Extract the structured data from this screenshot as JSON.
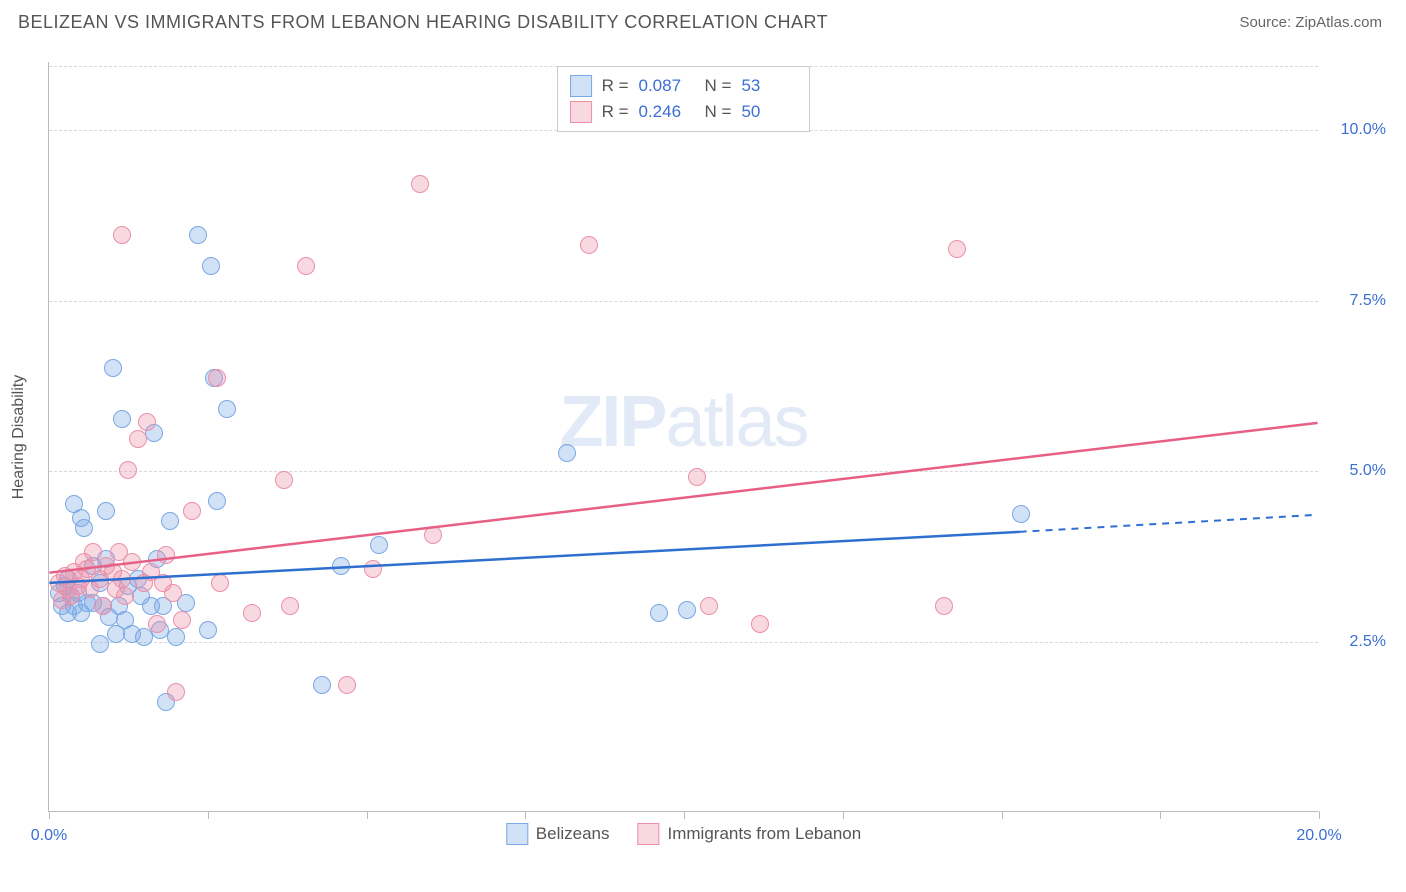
{
  "title": "BELIZEAN VS IMMIGRANTS FROM LEBANON HEARING DISABILITY CORRELATION CHART",
  "source": "Source: ZipAtlas.com",
  "watermark_bold": "ZIP",
  "watermark_light": "atlas",
  "ylabel": "Hearing Disability",
  "chart": {
    "type": "scatter",
    "xlim": [
      0,
      20
    ],
    "ylim": [
      0,
      11
    ],
    "xtick_positions": [
      0,
      2.5,
      5,
      7.5,
      10,
      12.5,
      15,
      17.5,
      20
    ],
    "xtick_labels": {
      "0": "0.0%",
      "20": "20.0%"
    },
    "ytick_positions": [
      2.5,
      5.0,
      7.5,
      10.0
    ],
    "ytick_labels": [
      "2.5%",
      "5.0%",
      "7.5%",
      "10.0%"
    ],
    "grid_color": "#d8d8d8",
    "axis_color": "#bbbbbb",
    "background": "#ffffff",
    "tick_label_color": "#3b6fd4",
    "point_radius": 9,
    "series": [
      {
        "name": "Belizeans",
        "fill": "rgba(122,168,228,0.35)",
        "stroke": "#7aa8e4",
        "line_color": "#2f6fd0",
        "R": "0.087",
        "N": "53",
        "trend": {
          "x1": 0,
          "y1": 3.35,
          "x2": 15.3,
          "y2": 4.1,
          "x2_dash": 20,
          "y2_dash": 4.35
        },
        "points": [
          [
            0.15,
            3.2
          ],
          [
            0.2,
            3.0
          ],
          [
            0.25,
            3.3
          ],
          [
            0.3,
            2.9
          ],
          [
            0.3,
            3.4
          ],
          [
            0.35,
            3.15
          ],
          [
            0.4,
            3.0
          ],
          [
            0.4,
            4.5
          ],
          [
            0.45,
            3.2
          ],
          [
            0.5,
            2.9
          ],
          [
            0.5,
            4.3
          ],
          [
            0.55,
            4.15
          ],
          [
            0.6,
            3.05
          ],
          [
            0.7,
            3.6
          ],
          [
            0.7,
            3.05
          ],
          [
            0.8,
            3.35
          ],
          [
            0.8,
            2.45
          ],
          [
            0.85,
            3.0
          ],
          [
            0.9,
            3.7
          ],
          [
            0.9,
            4.4
          ],
          [
            0.95,
            2.85
          ],
          [
            1.0,
            6.5
          ],
          [
            1.05,
            2.6
          ],
          [
            1.1,
            3.0
          ],
          [
            1.15,
            5.75
          ],
          [
            1.2,
            2.8
          ],
          [
            1.25,
            3.3
          ],
          [
            1.3,
            2.6
          ],
          [
            1.4,
            3.4
          ],
          [
            1.45,
            3.15
          ],
          [
            1.5,
            2.55
          ],
          [
            1.6,
            3.0
          ],
          [
            1.65,
            5.55
          ],
          [
            1.7,
            3.7
          ],
          [
            1.75,
            2.65
          ],
          [
            1.8,
            3.0
          ],
          [
            1.85,
            1.6
          ],
          [
            1.9,
            4.25
          ],
          [
            2.0,
            2.55
          ],
          [
            2.15,
            3.05
          ],
          [
            2.35,
            8.45
          ],
          [
            2.5,
            2.65
          ],
          [
            2.55,
            8.0
          ],
          [
            2.6,
            6.35
          ],
          [
            2.65,
            4.55
          ],
          [
            2.8,
            5.9
          ],
          [
            4.3,
            1.85
          ],
          [
            4.6,
            3.6
          ],
          [
            5.2,
            3.9
          ],
          [
            8.15,
            5.25
          ],
          [
            9.6,
            2.9
          ],
          [
            10.05,
            2.95
          ],
          [
            15.3,
            4.35
          ]
        ]
      },
      {
        "name": "Immigrants from Lebanon",
        "fill": "rgba(236,144,168,0.35)",
        "stroke": "#ec90a8",
        "line_color": "#e85f86",
        "R": "0.246",
        "N": "50",
        "trend": {
          "x1": 0,
          "y1": 3.5,
          "x2": 20,
          "y2": 5.7
        },
        "points": [
          [
            0.15,
            3.35
          ],
          [
            0.2,
            3.1
          ],
          [
            0.25,
            3.45
          ],
          [
            0.3,
            3.25
          ],
          [
            0.35,
            3.15
          ],
          [
            0.4,
            3.5
          ],
          [
            0.45,
            3.3
          ],
          [
            0.5,
            3.4
          ],
          [
            0.55,
            3.65
          ],
          [
            0.6,
            3.55
          ],
          [
            0.65,
            3.25
          ],
          [
            0.7,
            3.8
          ],
          [
            0.8,
            3.4
          ],
          [
            0.85,
            3.0
          ],
          [
            0.9,
            3.6
          ],
          [
            1.0,
            3.5
          ],
          [
            1.05,
            3.25
          ],
          [
            1.1,
            3.8
          ],
          [
            1.15,
            3.4
          ],
          [
            1.15,
            8.45
          ],
          [
            1.2,
            3.15
          ],
          [
            1.25,
            5.0
          ],
          [
            1.3,
            3.65
          ],
          [
            1.4,
            5.45
          ],
          [
            1.5,
            3.35
          ],
          [
            1.55,
            5.7
          ],
          [
            1.6,
            3.5
          ],
          [
            1.7,
            2.75
          ],
          [
            1.8,
            3.35
          ],
          [
            1.85,
            3.75
          ],
          [
            1.95,
            3.2
          ],
          [
            2.0,
            1.75
          ],
          [
            2.1,
            2.8
          ],
          [
            2.25,
            4.4
          ],
          [
            2.65,
            6.35
          ],
          [
            2.7,
            3.35
          ],
          [
            3.2,
            2.9
          ],
          [
            3.7,
            4.85
          ],
          [
            3.8,
            3.0
          ],
          [
            4.05,
            8.0
          ],
          [
            4.7,
            1.85
          ],
          [
            5.1,
            3.55
          ],
          [
            5.85,
            9.2
          ],
          [
            6.05,
            4.05
          ],
          [
            8.5,
            8.3
          ],
          [
            10.2,
            4.9
          ],
          [
            10.4,
            3.0
          ],
          [
            11.2,
            2.75
          ],
          [
            14.1,
            3.0
          ],
          [
            14.3,
            8.25
          ]
        ]
      }
    ]
  },
  "legend_bottom": [
    {
      "label": "Belizeans",
      "fill": "rgba(122,168,228,0.35)",
      "stroke": "#7aa8e4"
    },
    {
      "label": "Immigrants from Lebanon",
      "fill": "rgba(236,144,168,0.35)",
      "stroke": "#ec90a8"
    }
  ]
}
